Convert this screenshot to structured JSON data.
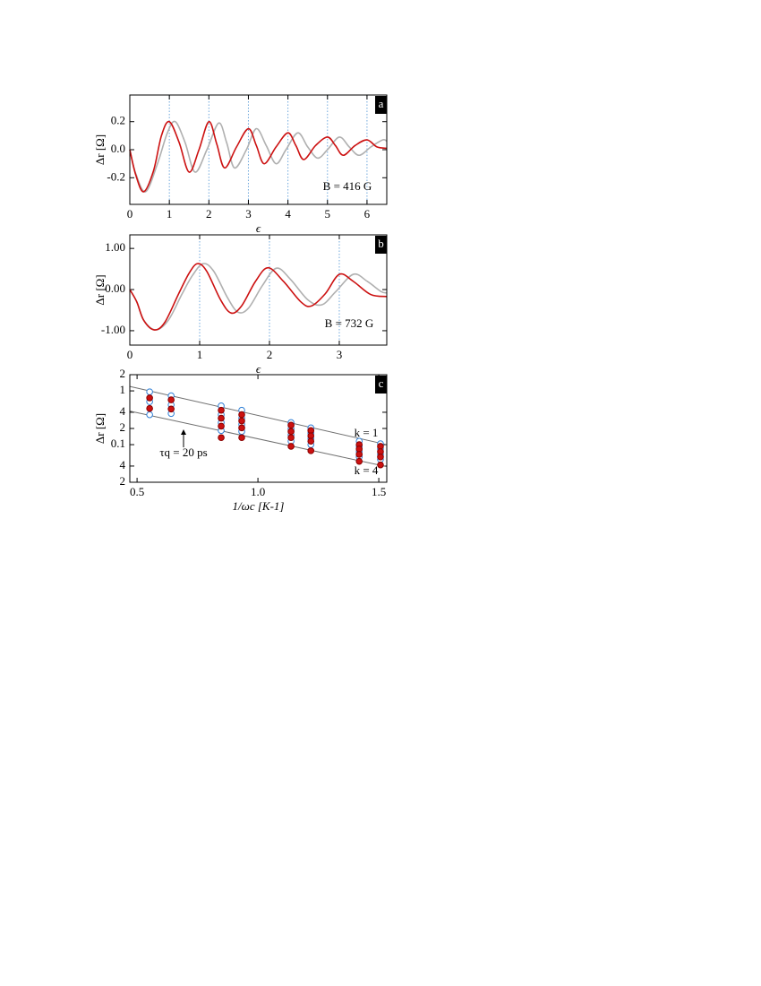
{
  "chart_data": [
    {
      "type": "line",
      "ylabel": "Δr [Ω]",
      "xlabel": "ϵ",
      "panel": "a",
      "annotations": [
        "B = 416 G"
      ],
      "xlim": [
        0,
        6.5
      ],
      "xticks": [
        0,
        1,
        2,
        3,
        4,
        5,
        6
      ],
      "ylim": [
        -0.39,
        0.39
      ],
      "yticks": [
        -0.2,
        {
          "value": 0,
          "label": "0.0"
        },
        0.2
      ],
      "vlines": [
        1,
        2,
        3,
        4,
        5,
        6
      ],
      "vline_color": "#6fa8dc",
      "series": [
        {
          "color": "#b0b0b0",
          "x": [
            0,
            0.15,
            0.4,
            0.7,
            0.95,
            1.15,
            1.4,
            1.65,
            1.95,
            2.25,
            2.45,
            2.65,
            2.95,
            3.2,
            3.45,
            3.7,
            3.95,
            4.25,
            4.5,
            4.75,
            5.0,
            5.3,
            5.55,
            5.8,
            6.1,
            6.4,
            6.5
          ],
          "values": [
            0,
            -0.17,
            -0.3,
            -0.1,
            0.12,
            0.2,
            0.05,
            -0.16,
            0.0,
            0.19,
            0.05,
            -0.13,
            0.0,
            0.15,
            0.03,
            -0.1,
            0.0,
            0.12,
            0.02,
            -0.06,
            0.0,
            0.09,
            0.02,
            -0.04,
            0.02,
            0.07,
            0.06
          ]
        },
        {
          "color": "#cc1111",
          "x": [
            0,
            0.15,
            0.35,
            0.6,
            0.8,
            1.0,
            1.25,
            1.5,
            1.75,
            2.0,
            2.2,
            2.4,
            2.7,
            3.0,
            3.2,
            3.4,
            3.7,
            4.0,
            4.2,
            4.4,
            4.7,
            5.0,
            5.2,
            5.4,
            5.7,
            6.0,
            6.25,
            6.5
          ],
          "values": [
            0,
            -0.18,
            -0.3,
            -0.15,
            0.1,
            0.2,
            0.05,
            -0.16,
            0.0,
            0.2,
            0.04,
            -0.13,
            0.02,
            0.15,
            0.03,
            -0.1,
            0.02,
            0.12,
            0.03,
            -0.07,
            0.03,
            0.09,
            0.03,
            -0.04,
            0.03,
            0.07,
            0.02,
            0.01
          ]
        }
      ]
    },
    {
      "type": "line",
      "ylabel": "Δr [Ω]",
      "xlabel": "ϵ",
      "panel": "b",
      "annotations": [
        "B = 732 G"
      ],
      "xlim": [
        0,
        3.68
      ],
      "xticks": [
        0,
        1,
        2,
        3
      ],
      "ylim": [
        -1.35,
        1.33
      ],
      "yticks": [
        {
          "value": -1,
          "label": "-1.00"
        },
        {
          "value": 0,
          "label": "0.00"
        },
        {
          "value": 1,
          "label": "1.00"
        }
      ],
      "vlines": [
        1,
        2,
        3
      ],
      "vline_color": "#6fa8dc",
      "series": [
        {
          "color": "#b0b0b0",
          "x": [
            0,
            0.1,
            0.2,
            0.37,
            0.55,
            0.75,
            0.9,
            1.05,
            1.2,
            1.4,
            1.55,
            1.7,
            1.9,
            2.1,
            2.3,
            2.55,
            2.75,
            2.95,
            3.2,
            3.4,
            3.6,
            3.68
          ],
          "values": [
            0,
            -0.3,
            -0.75,
            -0.98,
            -0.75,
            -0.1,
            0.35,
            0.63,
            0.45,
            -0.2,
            -0.55,
            -0.45,
            0.1,
            0.52,
            0.25,
            -0.25,
            -0.37,
            -0.05,
            0.37,
            0.2,
            -0.05,
            -0.08
          ]
        },
        {
          "color": "#cc1111",
          "x": [
            0,
            0.1,
            0.2,
            0.35,
            0.5,
            0.7,
            0.85,
            0.97,
            1.1,
            1.3,
            1.45,
            1.6,
            1.8,
            1.98,
            2.2,
            2.45,
            2.6,
            2.8,
            3.0,
            3.2,
            3.45,
            3.68
          ],
          "values": [
            0,
            -0.3,
            -0.75,
            -0.98,
            -0.8,
            -0.1,
            0.4,
            0.63,
            0.45,
            -0.25,
            -0.57,
            -0.4,
            0.2,
            0.53,
            0.2,
            -0.3,
            -0.4,
            -0.1,
            0.37,
            0.2,
            -0.12,
            -0.17
          ]
        }
      ]
    },
    {
      "type": "scatter",
      "ylabel": "Δr [Ω]",
      "xlabel": "1/ωc [K-1]",
      "panel": "c",
      "annotations": [
        "k = 1",
        "k = 4",
        "τq = 20 ps"
      ],
      "xlim": [
        0.47,
        1.533
      ],
      "xticks": [
        0.5,
        {
          "value": 1,
          "label": "1.0"
        },
        1.5
      ],
      "ylim": [
        0.02,
        2
      ],
      "ylog": true,
      "yticks": [
        2,
        1,
        {
          "value": 0.4,
          "label": "4"
        },
        {
          "value": 0.2,
          "label": "2"
        },
        0.1,
        {
          "value": 0.04,
          "label": "4"
        },
        {
          "value": 0.02,
          "label": "2"
        }
      ],
      "series": [
        {
          "style": "line",
          "color": "#707070",
          "x": [
            0.47,
            1.533
          ],
          "values": [
            1.21,
            0.1
          ]
        },
        {
          "style": "line",
          "color": "#707070",
          "x": [
            0.47,
            1.533
          ],
          "values": [
            0.42,
            0.039
          ]
        },
        {
          "style": "open",
          "color": "#2f7fd6",
          "x": [
            0.552,
            0.552,
            0.552,
            0.641,
            0.641,
            0.641,
            0.848,
            0.848,
            0.848,
            0.848,
            0.933,
            0.933,
            0.933,
            0.933,
            1.137,
            1.137,
            1.137,
            1.137,
            1.219,
            1.219,
            1.219,
            1.219,
            1.419,
            1.419,
            1.419,
            1.419,
            1.507,
            1.507,
            1.507,
            1.507
          ],
          "values": [
            0.96,
            0.63,
            0.36,
            0.81,
            0.55,
            0.38,
            0.525,
            0.361,
            0.257,
            0.183,
            0.436,
            0.31,
            0.238,
            0.176,
            0.257,
            0.197,
            0.151,
            0.116,
            0.205,
            0.163,
            0.13,
            0.1,
            0.116,
            0.093,
            0.074,
            0.059,
            0.104,
            0.083,
            0.066,
            0.053
          ]
        },
        {
          "style": "filled",
          "color": "#cc1111",
          "x": [
            0.552,
            0.552,
            0.641,
            0.641,
            0.848,
            0.848,
            0.848,
            0.848,
            0.933,
            0.933,
            0.933,
            0.933,
            1.137,
            1.137,
            1.137,
            1.137,
            1.219,
            1.219,
            1.219,
            1.219,
            1.419,
            1.419,
            1.419,
            1.419,
            1.507,
            1.507,
            1.507,
            1.507
          ],
          "values": [
            0.74,
            0.47,
            0.68,
            0.46,
            0.436,
            0.31,
            0.221,
            0.135,
            0.361,
            0.277,
            0.205,
            0.135,
            0.23,
            0.176,
            0.135,
            0.093,
            0.183,
            0.146,
            0.116,
            0.077,
            0.1,
            0.083,
            0.066,
            0.049,
            0.093,
            0.074,
            0.059,
            0.042
          ]
        }
      ]
    }
  ]
}
